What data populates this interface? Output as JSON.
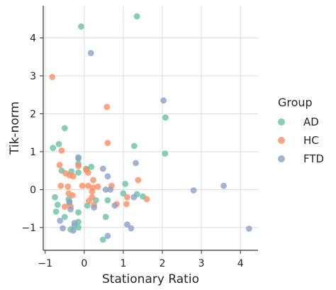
{
  "chart_data": {
    "type": "scatter",
    "xlabel": "Stationary Ratio",
    "ylabel": "Tik-norm",
    "xlim": [
      -1.05,
      4.45
    ],
    "ylim": [
      -1.6,
      4.85
    ],
    "xticks": [
      -1,
      0,
      1,
      2,
      3,
      4
    ],
    "yticks": [
      -1,
      0,
      1,
      2,
      3,
      4
    ],
    "xtick_labels": [
      "−1",
      "0",
      "1",
      "2",
      "3",
      "4"
    ],
    "ytick_labels": [
      "−1",
      "0",
      "1",
      "2",
      "3",
      "4"
    ],
    "grid": true,
    "legend": {
      "title": "Group",
      "placement": "right"
    },
    "series": [
      {
        "name": "AD",
        "color": "#66c2a5",
        "points": [
          [
            -0.08,
            4.3
          ],
          [
            1.35,
            4.57
          ],
          [
            -0.5,
            1.62
          ],
          [
            -0.8,
            1.1
          ],
          [
            -0.65,
            1.2
          ],
          [
            1.28,
            1.15
          ],
          [
            2.08,
            1.9
          ],
          [
            2.07,
            0.95
          ],
          [
            -0.15,
            0.85
          ],
          [
            -0.15,
            0.68
          ],
          [
            0.18,
            0.6
          ],
          [
            -0.58,
            0.5
          ],
          [
            -0.33,
            0.48
          ],
          [
            -0.15,
            0.45
          ],
          [
            0.05,
            0.55
          ],
          [
            1.05,
            0.15
          ],
          [
            1.0,
            -0.1
          ],
          [
            1.35,
            -0.12
          ],
          [
            1.5,
            -0.18
          ],
          [
            0.3,
            -0.28
          ],
          [
            0.6,
            -0.28
          ],
          [
            -0.38,
            -0.35
          ],
          [
            -0.4,
            -0.25
          ],
          [
            -0.75,
            -0.2
          ],
          [
            -0.68,
            -0.4
          ],
          [
            0.08,
            -0.42
          ],
          [
            -0.72,
            -0.58
          ],
          [
            -0.5,
            -0.72
          ],
          [
            -0.15,
            -0.6
          ],
          [
            -0.15,
            -0.85
          ],
          [
            -0.15,
            -1.0
          ],
          [
            -0.25,
            -0.95
          ],
          [
            -0.35,
            -1.05
          ],
          [
            0.55,
            -0.72
          ],
          [
            0.48,
            -1.32
          ]
        ]
      },
      {
        "name": "HC",
        "color": "#fc8d62",
        "points": [
          [
            -0.82,
            2.97
          ],
          [
            0.58,
            2.18
          ],
          [
            -0.58,
            1.03
          ],
          [
            0.6,
            1.23
          ],
          [
            -0.63,
            0.65
          ],
          [
            -0.48,
            0.43
          ],
          [
            -0.38,
            0.38
          ],
          [
            -0.28,
            0.35
          ],
          [
            -0.15,
            0.62
          ],
          [
            0.05,
            0.52
          ],
          [
            0.1,
            0.45
          ],
          [
            0.23,
            0.25
          ],
          [
            0.22,
            0.05
          ],
          [
            0.2,
            -0.05
          ],
          [
            0.1,
            0.1
          ],
          [
            -0.05,
            0.1
          ],
          [
            -0.42,
            0.08
          ],
          [
            -0.6,
            0.1
          ],
          [
            -0.4,
            -0.1
          ],
          [
            -0.3,
            -0.15
          ],
          [
            -0.5,
            -0.45
          ],
          [
            -0.35,
            -0.45
          ],
          [
            0.12,
            -0.3
          ],
          [
            0.2,
            -0.2
          ],
          [
            0.25,
            -0.4
          ],
          [
            0.7,
            0.1
          ],
          [
            0.83,
            -0.38
          ],
          [
            1.08,
            -0.38
          ],
          [
            1.1,
            -0.2
          ],
          [
            1.38,
            0.25
          ],
          [
            1.6,
            -0.25
          ],
          [
            0.35,
            0.08
          ]
        ]
      },
      {
        "name": "FTD",
        "color": "#8da0cb",
        "points": [
          [
            0.17,
            3.6
          ],
          [
            2.03,
            2.35
          ],
          [
            -0.15,
            0.82
          ],
          [
            0.48,
            0.55
          ],
          [
            0.6,
            0.35
          ],
          [
            1.32,
            0.7
          ],
          [
            0.55,
            0.0
          ],
          [
            0.67,
            0.0
          ],
          [
            1.27,
            -0.2
          ],
          [
            2.8,
            -0.02
          ],
          [
            3.57,
            0.1
          ],
          [
            0.78,
            -0.42
          ],
          [
            0.25,
            -0.47
          ],
          [
            -0.38,
            -0.32
          ],
          [
            -0.35,
            -0.52
          ],
          [
            -0.62,
            -0.82
          ],
          [
            -0.55,
            -1.02
          ],
          [
            -0.28,
            -1.08
          ],
          [
            -0.25,
            -0.88
          ],
          [
            1.1,
            -0.92
          ],
          [
            1.2,
            -1.02
          ],
          [
            0.6,
            -1.22
          ],
          [
            4.22,
            -1.03
          ]
        ]
      }
    ]
  }
}
